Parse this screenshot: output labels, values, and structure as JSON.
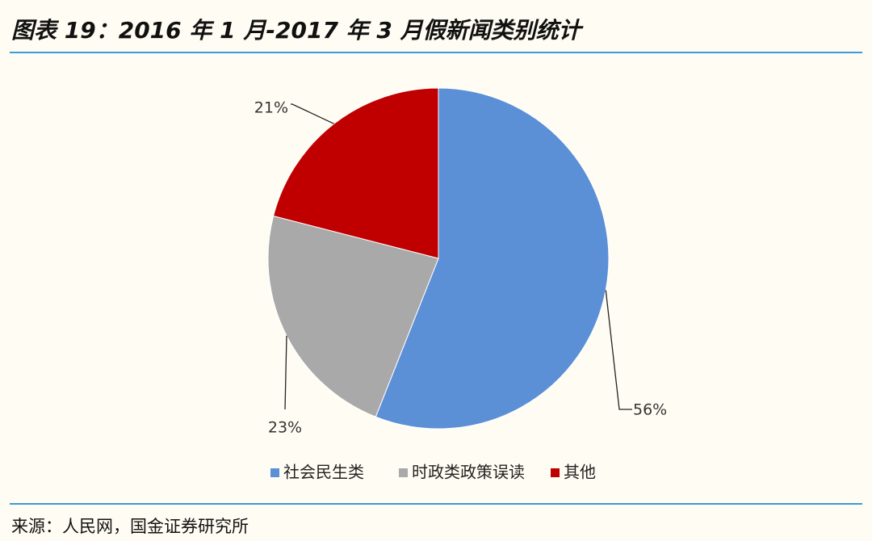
{
  "header": {
    "title": "图表 19：2016 年 1 月-2017 年 3 月假新闻类别统计"
  },
  "chart_data": {
    "type": "pie",
    "slices": [
      {
        "label": "社会民生类",
        "value": 56,
        "value_label": "56%",
        "color": "#5b8fd6"
      },
      {
        "label": "时政类政策误读",
        "value": 23,
        "value_label": "23%",
        "color": "#a9a9a9"
      },
      {
        "label": "其他",
        "value": 21,
        "value_label": "21%",
        "color": "#c00000"
      }
    ],
    "legend_position": "bottom"
  },
  "footer": {
    "source": "来源：人民网，国金证券研究所"
  }
}
